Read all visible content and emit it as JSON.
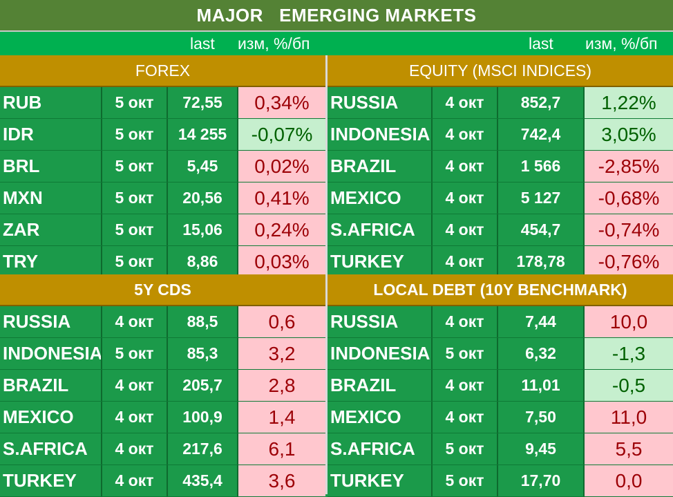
{
  "title": "MAJOR   EMERGING MARKETS",
  "col_headers": {
    "left_last": "last",
    "left_change": "изм, %/бп",
    "right_last": "last",
    "right_change": "изм, %/бп"
  },
  "colors": {
    "title_bg": "#548235",
    "row_bg": "#1b9a4a",
    "section_bg": "#bf8f00",
    "neg_bg": "#ffc7ce",
    "neg_fg": "#9c0006",
    "pos_bg": "#c6efce",
    "pos_fg": "#006100"
  },
  "forex": {
    "title": "FOREX",
    "rows": [
      {
        "name": "RUB",
        "date": "5 окт",
        "last": "72,55",
        "change": "0,34%"
      },
      {
        "name": "IDR",
        "date": "5 окт",
        "last": "14 255",
        "change": "-0,07%"
      },
      {
        "name": "BRL",
        "date": "5 окт",
        "last": "5,45",
        "change": "0,02%"
      },
      {
        "name": "MXN",
        "date": "5 окт",
        "last": "20,56",
        "change": "0,41%"
      },
      {
        "name": "ZAR",
        "date": "5 окт",
        "last": "15,06",
        "change": "0,24%"
      },
      {
        "name": "TRY",
        "date": "5 окт",
        "last": "8,86",
        "change": "0,03%"
      }
    ]
  },
  "equity": {
    "title": "EQUITY (MSCI INDICES)",
    "rows": [
      {
        "name": "RUSSIA",
        "date": "4 окт",
        "last": "852,7",
        "change": "1,22%"
      },
      {
        "name": "INDONESIA",
        "date": "4 окт",
        "last": "742,4",
        "change": "3,05%"
      },
      {
        "name": "BRAZIL",
        "date": "4 окт",
        "last": "1 566",
        "change": "-2,85%"
      },
      {
        "name": "MEXICO",
        "date": "4 окт",
        "last": "5 127",
        "change": "-0,68%"
      },
      {
        "name": "S.AFRICA",
        "date": "4 окт",
        "last": "454,7",
        "change": "-0,74%"
      },
      {
        "name": "TURKEY",
        "date": "4 окт",
        "last": "178,78",
        "change": "-0,76%"
      }
    ]
  },
  "cds": {
    "title": "5Y CDS",
    "rows": [
      {
        "name": "RUSSIA",
        "date": "4 окт",
        "last": "88,5",
        "change": "0,6"
      },
      {
        "name": "INDONESIA",
        "date": "5 окт",
        "last": "85,3",
        "change": "3,2"
      },
      {
        "name": "BRAZIL",
        "date": "4 окт",
        "last": "205,7",
        "change": "2,8"
      },
      {
        "name": "MEXICO",
        "date": "4 окт",
        "last": "100,9",
        "change": "1,4"
      },
      {
        "name": "S.AFRICA",
        "date": "4 окт",
        "last": "217,6",
        "change": "6,1"
      },
      {
        "name": "TURKEY",
        "date": "4 окт",
        "last": "435,4",
        "change": "3,6"
      }
    ]
  },
  "local_debt": {
    "title": "LOCAL DEBT (10Y BENCHMARK)",
    "rows": [
      {
        "name": "RUSSIA",
        "date": "4 окт",
        "last": "7,44",
        "change": "10,0"
      },
      {
        "name": "INDONESIA",
        "date": "5 окт",
        "last": "6,32",
        "change": "-1,3"
      },
      {
        "name": "BRAZIL",
        "date": "4 окт",
        "last": "11,01",
        "change": "-0,5"
      },
      {
        "name": "MEXICO",
        "date": "4 окт",
        "last": "7,50",
        "change": "11,0"
      },
      {
        "name": "S.AFRICA",
        "date": "5 окт",
        "last": "9,45",
        "change": "5,5"
      },
      {
        "name": "TURKEY",
        "date": "5 окт",
        "last": "17,70",
        "change": "0,0"
      }
    ]
  }
}
